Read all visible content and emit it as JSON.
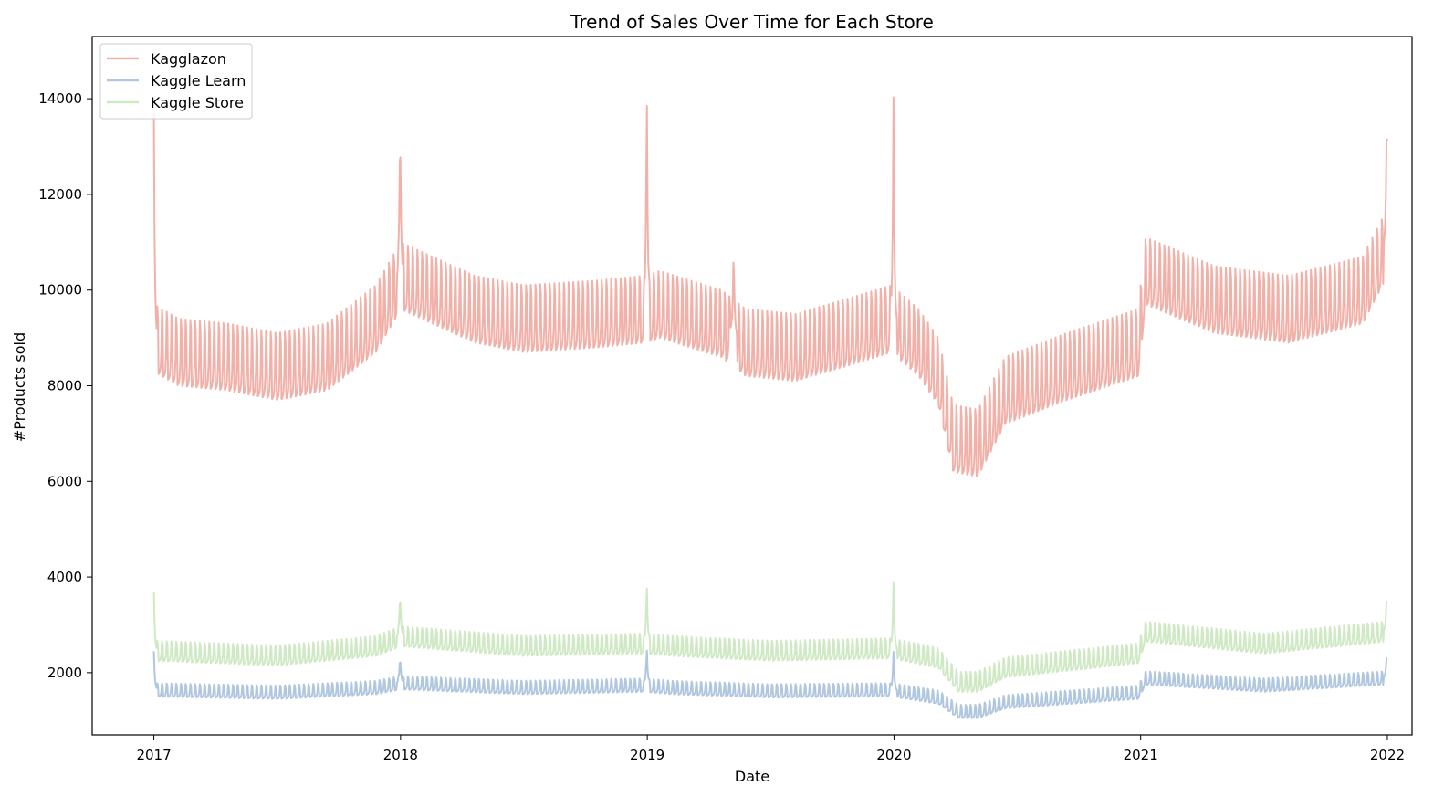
{
  "chart_data": {
    "type": "line",
    "title": "Trend of Sales Over Time for Each Store",
    "xlabel": "Date",
    "ylabel": "#Products sold",
    "xlim": [
      2016.75,
      2022.1
    ],
    "ylim": [
      700,
      15300
    ],
    "x_ticks": [
      2017,
      2018,
      2019,
      2020,
      2021,
      2022
    ],
    "x_tick_labels": [
      "2017",
      "2018",
      "2019",
      "2020",
      "2021",
      "2022"
    ],
    "y_ticks": [
      2000,
      4000,
      6000,
      8000,
      10000,
      12000,
      14000
    ],
    "y_tick_labels": [
      "2000",
      "4000",
      "6000",
      "8000",
      "10000",
      "12000",
      "14000"
    ],
    "grid": false,
    "legend_position": "top-left",
    "frequency": "daily",
    "series": [
      {
        "name": "Kagglazon",
        "color": "#f1b1a9",
        "baseline": [
          [
            2017.0,
            8300
          ],
          [
            2017.1,
            8000
          ],
          [
            2017.3,
            7900
          ],
          [
            2017.5,
            7700
          ],
          [
            2017.7,
            7900
          ],
          [
            2017.9,
            8700
          ],
          [
            2018.0,
            9600
          ],
          [
            2018.3,
            8900
          ],
          [
            2018.5,
            8700
          ],
          [
            2018.8,
            8800
          ],
          [
            2018.99,
            8900
          ],
          [
            2019.05,
            9000
          ],
          [
            2019.3,
            8600
          ],
          [
            2019.4,
            8200
          ],
          [
            2019.6,
            8100
          ],
          [
            2019.8,
            8400
          ],
          [
            2019.99,
            8700
          ],
          [
            2020.1,
            8200
          ],
          [
            2020.18,
            7600
          ],
          [
            2020.24,
            6200
          ],
          [
            2020.34,
            6100
          ],
          [
            2020.45,
            7200
          ],
          [
            2020.7,
            7700
          ],
          [
            2020.99,
            8200
          ],
          [
            2021.02,
            9700
          ],
          [
            2021.3,
            9100
          ],
          [
            2021.6,
            8900
          ],
          [
            2021.9,
            9300
          ],
          [
            2021.99,
            10200
          ]
        ],
        "weekly_amplitude": 1400,
        "spikes": [
          {
            "x": 2017.0,
            "y": 13700
          },
          {
            "x": 2017.998,
            "y": 13850
          },
          {
            "x": 2018.998,
            "y": 14650
          },
          {
            "x": 2019.35,
            "y": 11000
          },
          {
            "x": 2019.998,
            "y": 14100
          },
          {
            "x": 2021.998,
            "y": 14150
          }
        ]
      },
      {
        "name": "Kaggle Learn",
        "color": "#b1c7e0",
        "baseline": [
          [
            2017.0,
            1500
          ],
          [
            2017.5,
            1450
          ],
          [
            2017.9,
            1550
          ],
          [
            2018.0,
            1650
          ],
          [
            2018.5,
            1550
          ],
          [
            2018.99,
            1600
          ],
          [
            2019.1,
            1550
          ],
          [
            2019.5,
            1480
          ],
          [
            2019.99,
            1500
          ],
          [
            2020.18,
            1350
          ],
          [
            2020.26,
            1050
          ],
          [
            2020.34,
            1050
          ],
          [
            2020.45,
            1250
          ],
          [
            2020.99,
            1450
          ],
          [
            2021.02,
            1750
          ],
          [
            2021.5,
            1600
          ],
          [
            2021.99,
            1750
          ]
        ],
        "weekly_amplitude": 280,
        "spikes": [
          {
            "x": 2017.0,
            "y": 2450
          },
          {
            "x": 2017.998,
            "y": 2400
          },
          {
            "x": 2018.998,
            "y": 2600
          },
          {
            "x": 2019.998,
            "y": 2450
          },
          {
            "x": 2021.998,
            "y": 2500
          }
        ]
      },
      {
        "name": "Kaggle Store",
        "color": "#d0e9c5",
        "baseline": [
          [
            2017.0,
            2250
          ],
          [
            2017.5,
            2150
          ],
          [
            2017.9,
            2350
          ],
          [
            2018.0,
            2550
          ],
          [
            2018.5,
            2350
          ],
          [
            2018.99,
            2400
          ],
          [
            2019.1,
            2350
          ],
          [
            2019.5,
            2250
          ],
          [
            2019.99,
            2300
          ],
          [
            2020.18,
            2100
          ],
          [
            2020.26,
            1600
          ],
          [
            2020.34,
            1600
          ],
          [
            2020.45,
            1900
          ],
          [
            2020.99,
            2200
          ],
          [
            2021.02,
            2650
          ],
          [
            2021.5,
            2400
          ],
          [
            2021.99,
            2650
          ]
        ],
        "weekly_amplitude": 420,
        "spikes": [
          {
            "x": 2017.0,
            "y": 3700
          },
          {
            "x": 2017.998,
            "y": 3780
          },
          {
            "x": 2018.998,
            "y": 3980
          },
          {
            "x": 2019.998,
            "y": 3920
          },
          {
            "x": 2021.998,
            "y": 3780
          }
        ]
      }
    ]
  }
}
